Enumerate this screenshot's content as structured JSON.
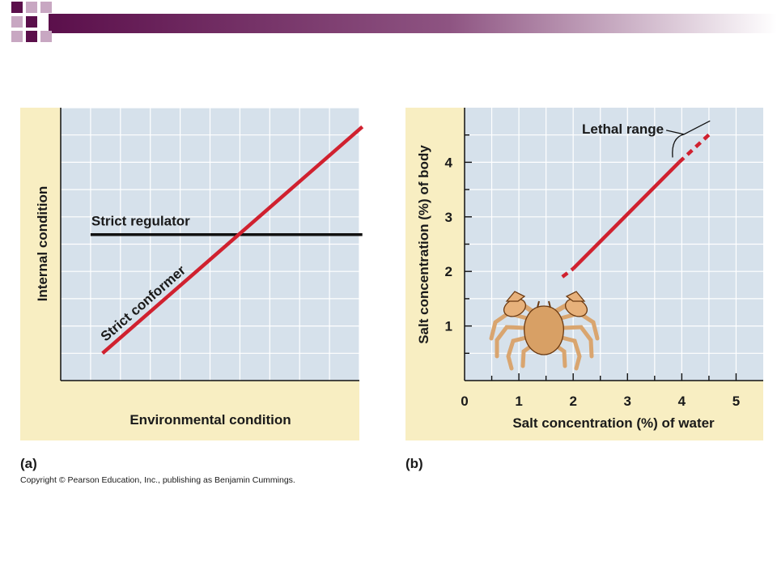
{
  "colors": {
    "panel_bg": "#f8eec2",
    "plot_bg": "#d6e1eb",
    "grid": "#ffffff",
    "conformer": "#d0212f",
    "regulator": "#111111",
    "banner_dark": "#5b0f4b",
    "banner_light": "#c8a7c2"
  },
  "copyright": "Copyright © Pearson Education, Inc., publishing as Benjamin Cummings.",
  "chart_data": [
    {
      "panel_label": "(a)",
      "type": "line",
      "title": "",
      "xlabel": "Environmental condition",
      "ylabel": "Internal condition",
      "xlim": [
        0,
        10
      ],
      "ylim": [
        0,
        10
      ],
      "grid": true,
      "ticks": "none",
      "series": [
        {
          "name": "Strict regulator",
          "color": "#111111",
          "x": [
            1.0,
            10.1
          ],
          "y": [
            5.35,
            5.35
          ]
        },
        {
          "name": "Strict conformer",
          "color": "#d0212f",
          "x": [
            1.4,
            10.1
          ],
          "y": [
            1.0,
            9.3
          ]
        }
      ]
    },
    {
      "panel_label": "(b)",
      "type": "line",
      "title": "",
      "xlabel": "Salt concentration (%) of water",
      "ylabel": "Salt concentration (%) of body",
      "xlim": [
        0,
        5.5
      ],
      "ylim": [
        0,
        5
      ],
      "grid": true,
      "xticks": [
        "0",
        "1",
        "2",
        "3",
        "4",
        "5"
      ],
      "yticks": [
        "1",
        "2",
        "3",
        "4"
      ],
      "series": [
        {
          "name": "",
          "color": "#d0212f",
          "segments": [
            {
              "style": "dashed",
              "x": [
                1.8,
                2.0
              ],
              "y": [
                1.9,
                2.05
              ]
            },
            {
              "style": "solid",
              "x": [
                2.0,
                3.95
              ],
              "y": [
                2.05,
                4.0
              ]
            },
            {
              "style": "dashed",
              "x": [
                3.95,
                4.55
              ],
              "y": [
                4.0,
                4.55
              ]
            }
          ]
        }
      ],
      "annotations": [
        {
          "text": "Lethal range",
          "x_range": [
            3.95,
            4.55
          ]
        }
      ]
    }
  ]
}
